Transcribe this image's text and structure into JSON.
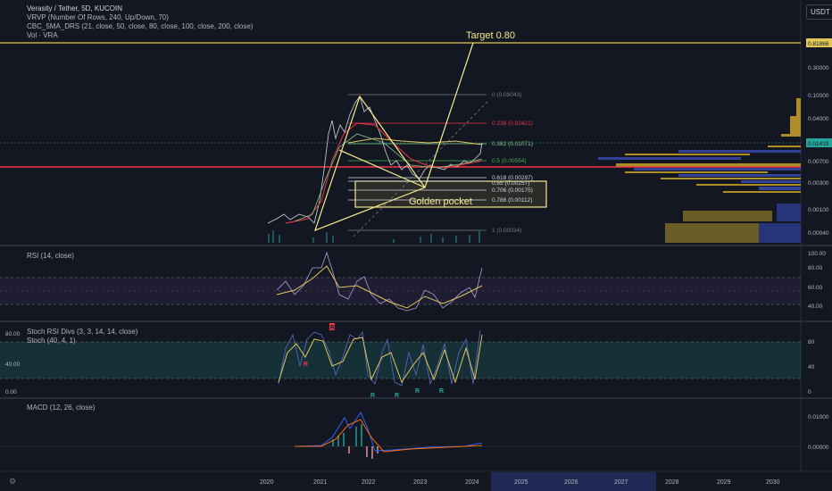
{
  "header": {
    "symbol": "Verasity / Tether, 5D, KUCOIN",
    "indicators": [
      "VRVP (Number Of Rows, 240, Up/Down, 70)",
      "CBC_5MA_DRS (21, close, 50, close, 80, close, 100, close, 200, close)",
      "Vol · VRA"
    ],
    "quote_currency": "USDT"
  },
  "main_pane": {
    "price_axis": [
      "0.30000",
      "0.10000",
      "0.04000",
      "0.01000",
      "0.00700",
      "0.00300",
      "0.00100",
      "0.00040"
    ],
    "top_price_label": "0.81866",
    "last_price_label": "0.01419",
    "annotation_target": "Target 0.80",
    "annotation_pocket": "Golden pocket",
    "fib_levels": [
      {
        "label": "0 (0.09043)",
        "color": "#787b86"
      },
      {
        "label": "0.236 (0.02421)",
        "color": "#f23645"
      },
      {
        "label": "0.382 (0.01071)",
        "color": "#81c784"
      },
      {
        "label": "0.5 (0.00554)",
        "color": "#4caf50"
      },
      {
        "label": "0.618 (0.00287)",
        "color": "#d1d4dc"
      },
      {
        "label": "0.65 (0.00257)",
        "color": "#d1d4dc"
      },
      {
        "label": "0.706 (0.00175)",
        "color": "#d1d4dc"
      },
      {
        "label": "0.786 (0.00112)",
        "color": "#d1d4dc"
      },
      {
        "label": "1 (0.00034)",
        "color": "#787b86"
      }
    ]
  },
  "rsi_pane": {
    "title": "RSI (14, close)",
    "axis": [
      "100.00",
      "80.00",
      "60.00",
      "40.00"
    ]
  },
  "stoch_pane": {
    "titles": [
      "Stoch RSI Divs (3, 3, 14, 14, close)",
      "Stoch (40, 4, 1)"
    ],
    "left_axis": [
      "80.00",
      "40.00",
      "0.00"
    ],
    "right_axis": [
      "80",
      "40",
      "0"
    ],
    "markers": [
      "R",
      "R",
      "R",
      "R",
      "R",
      "R"
    ]
  },
  "macd_pane": {
    "title": "MACD (12, 26, close)",
    "axis": [
      "0.01000",
      "0.00000"
    ]
  },
  "time_axis": [
    "2020",
    "2021",
    "2022",
    "2023",
    "2024",
    "2025",
    "2026",
    "2027",
    "2028",
    "2029",
    "2030"
  ],
  "chart_data": {
    "type": "line",
    "title": "Verasity / Tether, 5D, KUCOIN",
    "x": [
      "2020",
      "2020.5",
      "2021",
      "2021.5",
      "2022",
      "2022.5",
      "2023",
      "2023.5",
      "2024",
      "2024.2"
    ],
    "series": [
      {
        "name": "",
        "values": [
          0.0004,
          0.0006,
          0.0015,
          0.045,
          0.025,
          0.0045,
          0.0028,
          0.0045,
          0.0055,
          0.0142
        ]
      }
    ],
    "yscale": "log",
    "ylim": [
      0.0003,
      0.9
    ],
    "colors": {
      "price_line": "#d1d4dc",
      "ma_red": "#f23645",
      "ma_yellow": "#e0c75a",
      "horizontal_support": "#f23645",
      "target_line": "#f7e98e"
    }
  }
}
